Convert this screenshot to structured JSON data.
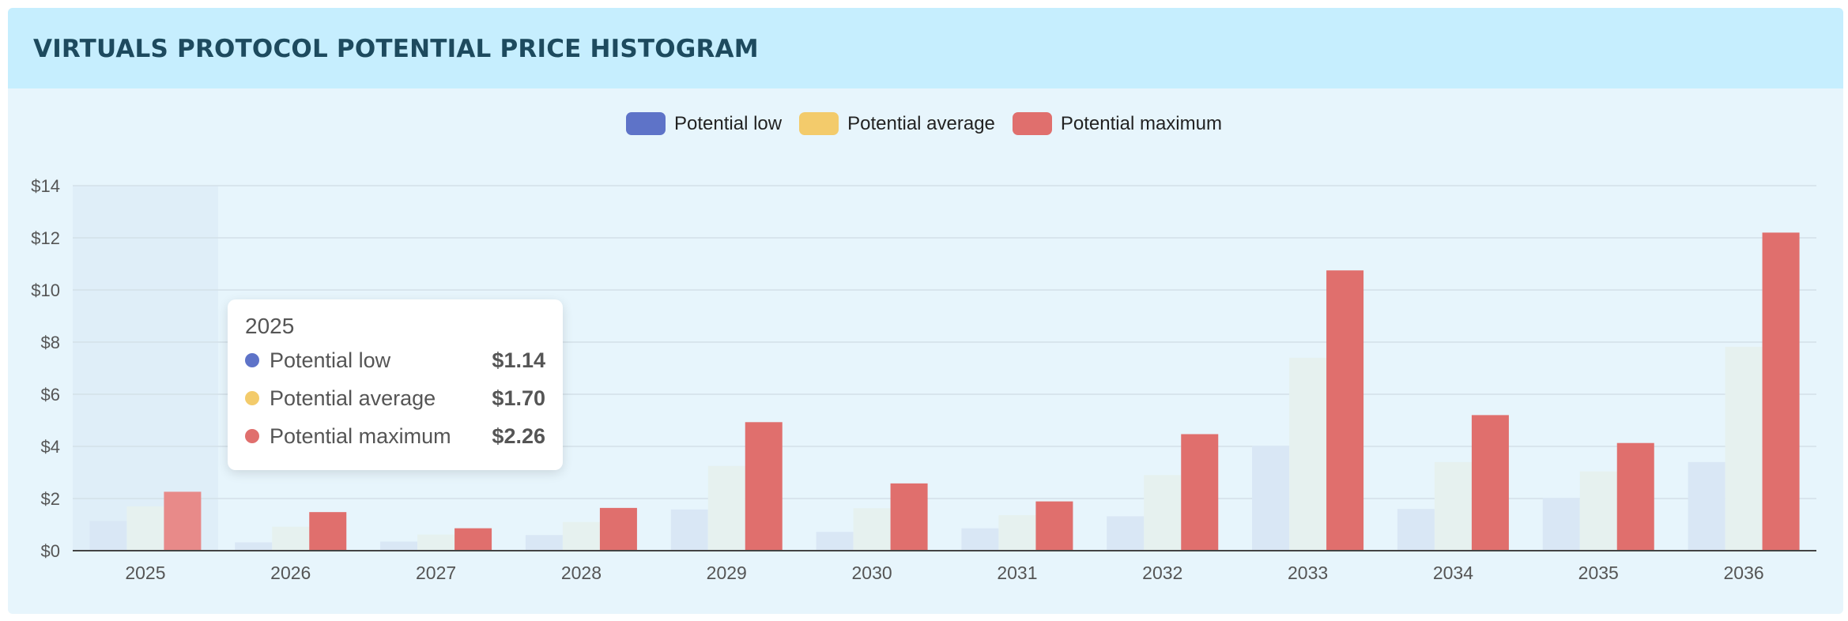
{
  "header": {
    "title": "VIRTUALS PROTOCOL POTENTIAL PRICE HISTOGRAM"
  },
  "colors": {
    "low": "#5e73c8",
    "average": "#f3cb6b",
    "maximum": "#e06f6d",
    "low_faded": "#d9e7f5",
    "average_faded": "#e6f1ef",
    "maximum_highlight": "#e88a89"
  },
  "legend": [
    {
      "key": "low",
      "label": "Potential low"
    },
    {
      "key": "average",
      "label": "Potential average"
    },
    {
      "key": "maximum",
      "label": "Potential maximum"
    }
  ],
  "tooltip": {
    "title": "2025",
    "rows": [
      {
        "key": "low",
        "label": "Potential low",
        "value": "$1.14"
      },
      {
        "key": "average",
        "label": "Potential average",
        "value": "$1.70"
      },
      {
        "key": "maximum",
        "label": "Potential maximum",
        "value": "$2.26"
      }
    ]
  },
  "chart_data": {
    "type": "bar",
    "categories": [
      "2025",
      "2026",
      "2027",
      "2028",
      "2029",
      "2030",
      "2031",
      "2032",
      "2033",
      "2034",
      "2035",
      "2036"
    ],
    "series": [
      {
        "name": "Potential low",
        "key": "low",
        "values": [
          1.14,
          0.32,
          0.35,
          0.6,
          1.58,
          0.72,
          0.86,
          1.32,
          4.02,
          1.6,
          2.02,
          3.4
        ]
      },
      {
        "name": "Potential average",
        "key": "average",
        "values": [
          1.7,
          0.92,
          0.62,
          1.1,
          3.25,
          1.63,
          1.36,
          2.9,
          7.4,
          3.4,
          3.04,
          7.82
        ]
      },
      {
        "name": "Potential maximum",
        "key": "maximum",
        "values": [
          2.26,
          1.48,
          0.86,
          1.64,
          4.93,
          2.58,
          1.89,
          4.47,
          10.75,
          5.2,
          4.13,
          12.2
        ]
      }
    ],
    "ylim": [
      0,
      14
    ],
    "yticks": [
      0,
      2,
      4,
      6,
      8,
      10,
      12,
      14
    ],
    "ytick_labels": [
      "$0",
      "$2",
      "$4",
      "$6",
      "$8",
      "$10",
      "$12",
      "$14"
    ],
    "grid": true,
    "legend_position": "top-center",
    "highlighted_category": "2025"
  }
}
